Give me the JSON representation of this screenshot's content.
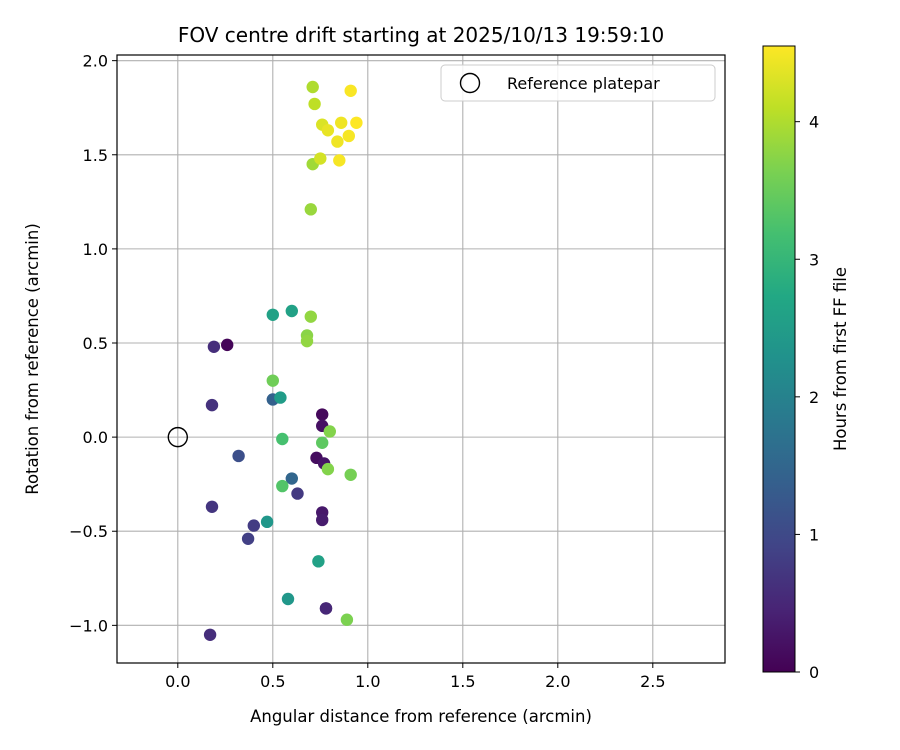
{
  "chart_data": {
    "type": "scatter",
    "title": "FOV centre drift starting at 2025/10/13 19:59:10",
    "xlabel": "Angular distance from reference (arcmin)",
    "ylabel": "Rotation from reference (arcmin)",
    "xlim": [
      -0.32,
      2.88
    ],
    "ylim": [
      -1.2,
      2.03
    ],
    "xticks": [
      0.0,
      0.5,
      1.0,
      1.5,
      2.0,
      2.5
    ],
    "xtick_labels": [
      "0.0",
      "0.5",
      "1.0",
      "1.5",
      "2.0",
      "2.5"
    ],
    "yticks": [
      -1.0,
      -0.5,
      0.0,
      0.5,
      1.0,
      1.5,
      2.0
    ],
    "ytick_labels": [
      "−1.0",
      "−0.5",
      "0.0",
      "0.5",
      "1.0",
      "1.5",
      "2.0"
    ],
    "grid": true,
    "colormap": "viridis",
    "colorbar": {
      "label": "Hours from first FF file",
      "range": [
        0,
        4.55
      ],
      "ticks": [
        0,
        1,
        2,
        3,
        4
      ],
      "tick_labels": [
        "0",
        "1",
        "2",
        "3",
        "4"
      ]
    },
    "reference": {
      "x": 0.0,
      "y": 0.0,
      "label": "Reference platepar"
    },
    "legend": {
      "position": "top-right",
      "entries": [
        "Reference platepar"
      ]
    },
    "points": [
      {
        "x": 0.26,
        "y": 0.49,
        "t": 0.05
      },
      {
        "x": 0.76,
        "y": 0.12,
        "t": 0.1
      },
      {
        "x": 0.73,
        "y": -0.11,
        "t": 0.15
      },
      {
        "x": 0.76,
        "y": 0.06,
        "t": 0.2
      },
      {
        "x": 0.77,
        "y": -0.14,
        "t": 0.25
      },
      {
        "x": 0.76,
        "y": -0.4,
        "t": 0.3
      },
      {
        "x": 0.76,
        "y": -0.44,
        "t": 0.35
      },
      {
        "x": 0.78,
        "y": -0.91,
        "t": 0.4
      },
      {
        "x": 0.78,
        "y": -0.91,
        "t": 0.5
      },
      {
        "x": 0.19,
        "y": 0.48,
        "t": 0.6
      },
      {
        "x": 0.18,
        "y": 0.17,
        "t": 0.65
      },
      {
        "x": 0.18,
        "y": -0.37,
        "t": 0.7
      },
      {
        "x": 0.17,
        "y": -1.05,
        "t": 0.6
      },
      {
        "x": 0.63,
        "y": -0.3,
        "t": 0.75
      },
      {
        "x": 0.4,
        "y": -0.47,
        "t": 0.8
      },
      {
        "x": 0.37,
        "y": -0.54,
        "t": 0.85
      },
      {
        "x": 0.32,
        "y": -0.1,
        "t": 1.1
      },
      {
        "x": 0.5,
        "y": 0.2,
        "t": 1.4
      },
      {
        "x": 0.6,
        "y": -0.22,
        "t": 1.5
      },
      {
        "x": 0.54,
        "y": 0.21,
        "t": 2.5
      },
      {
        "x": 0.47,
        "y": -0.45,
        "t": 2.4
      },
      {
        "x": 0.58,
        "y": -0.86,
        "t": 2.4
      },
      {
        "x": 0.74,
        "y": -0.66,
        "t": 2.6
      },
      {
        "x": 0.5,
        "y": 0.65,
        "t": 2.6
      },
      {
        "x": 0.6,
        "y": 0.67,
        "t": 2.6
      },
      {
        "x": 0.55,
        "y": -0.01,
        "t": 3.2
      },
      {
        "x": 0.55,
        "y": -0.26,
        "t": 3.3
      },
      {
        "x": 0.76,
        "y": -0.03,
        "t": 3.4
      },
      {
        "x": 0.5,
        "y": 0.3,
        "t": 3.55
      },
      {
        "x": 0.91,
        "y": -0.2,
        "t": 3.6
      },
      {
        "x": 0.89,
        "y": -0.97,
        "t": 3.65
      },
      {
        "x": 0.79,
        "y": -0.17,
        "t": 3.7
      },
      {
        "x": 0.8,
        "y": 0.03,
        "t": 3.7
      },
      {
        "x": 0.68,
        "y": 0.54,
        "t": 3.75
      },
      {
        "x": 0.68,
        "y": 0.51,
        "t": 3.8
      },
      {
        "x": 0.7,
        "y": 0.64,
        "t": 3.8
      },
      {
        "x": 0.7,
        "y": 1.21,
        "t": 3.85
      },
      {
        "x": 0.71,
        "y": 1.45,
        "t": 3.9
      },
      {
        "x": 0.71,
        "y": 1.86,
        "t": 4.0
      },
      {
        "x": 0.72,
        "y": 1.77,
        "t": 4.1
      },
      {
        "x": 0.75,
        "y": 1.48,
        "t": 4.25
      },
      {
        "x": 0.76,
        "y": 1.66,
        "t": 4.3
      },
      {
        "x": 0.79,
        "y": 1.63,
        "t": 4.4
      },
      {
        "x": 0.84,
        "y": 1.57,
        "t": 4.45
      },
      {
        "x": 0.85,
        "y": 1.47,
        "t": 4.5
      },
      {
        "x": 0.86,
        "y": 1.67,
        "t": 4.45
      },
      {
        "x": 0.9,
        "y": 1.6,
        "t": 4.5
      },
      {
        "x": 0.91,
        "y": 1.84,
        "t": 4.52
      },
      {
        "x": 0.94,
        "y": 1.67,
        "t": 4.55
      }
    ]
  }
}
